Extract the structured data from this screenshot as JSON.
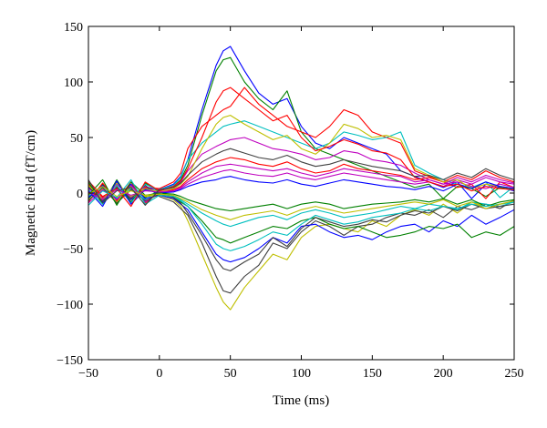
{
  "chart_data": {
    "type": "line",
    "title": "",
    "xlabel": "Time (ms)",
    "ylabel": "Magnetic field (fT/cm)",
    "xlim": [
      -50,
      250
    ],
    "ylim": [
      -150,
      150
    ],
    "xticks": [
      -50,
      0,
      50,
      100,
      150,
      200,
      250
    ],
    "xtick_labels": [
      "−50",
      "0",
      "50",
      "100",
      "150",
      "200",
      "250"
    ],
    "yticks": [
      -150,
      -100,
      -50,
      0,
      50,
      100,
      150
    ],
    "ytick_labels": [
      "−150",
      "−100",
      "−50",
      "0",
      "50",
      "100",
      "150"
    ],
    "grid": false,
    "legend": "none",
    "colors": [
      "#0000ff",
      "#008000",
      "#ff0000",
      "#00bfbf",
      "#bf00bf",
      "#bfbf00",
      "#404040"
    ],
    "x": [
      -50,
      -40,
      -30,
      -20,
      -10,
      0,
      10,
      15,
      20,
      30,
      40,
      45,
      50,
      60,
      70,
      80,
      90,
      100,
      110,
      120,
      130,
      140,
      150,
      160,
      170,
      180,
      190,
      200,
      210,
      220,
      230,
      240,
      250
    ],
    "series": [
      {
        "values": [
          5,
          -8,
          10,
          -6,
          4,
          3,
          8,
          15,
          30,
          75,
          115,
          128,
          132,
          110,
          90,
          80,
          85,
          60,
          45,
          40,
          50,
          45,
          40,
          35,
          20,
          15,
          10,
          5,
          10,
          -5,
          8,
          5,
          2
        ]
      },
      {
        "values": [
          -5,
          8,
          -10,
          6,
          -4,
          2,
          6,
          12,
          25,
          70,
          110,
          120,
          122,
          100,
          85,
          75,
          92,
          55,
          40,
          35,
          30,
          25,
          20,
          15,
          10,
          5,
          8,
          -5,
          6,
          4,
          -3,
          5,
          3
        ]
      },
      {
        "values": [
          8,
          -4,
          6,
          -8,
          5,
          4,
          10,
          18,
          40,
          60,
          70,
          75,
          78,
          95,
          80,
          70,
          60,
          55,
          50,
          60,
          75,
          70,
          55,
          50,
          45,
          20,
          15,
          10,
          5,
          8,
          -5,
          10,
          5
        ]
      },
      {
        "values": [
          -3,
          6,
          -5,
          4,
          -6,
          3,
          7,
          14,
          30,
          45,
          55,
          60,
          62,
          65,
          60,
          55,
          50,
          45,
          40,
          45,
          55,
          52,
          48,
          50,
          55,
          25,
          18,
          12,
          8,
          5,
          10,
          -4,
          6
        ]
      },
      {
        "values": [
          4,
          -5,
          8,
          -4,
          6,
          2,
          5,
          10,
          20,
          35,
          42,
          45,
          48,
          50,
          45,
          40,
          38,
          35,
          30,
          32,
          38,
          36,
          30,
          28,
          25,
          18,
          12,
          8,
          10,
          6,
          4,
          8,
          5
        ]
      },
      {
        "values": [
          -6,
          4,
          -8,
          6,
          -3,
          -2,
          -6,
          -12,
          -25,
          -55,
          -85,
          -98,
          -105,
          -85,
          -70,
          -55,
          -60,
          -40,
          -30,
          -28,
          -32,
          -35,
          -25,
          -30,
          -20,
          -15,
          -20,
          -10,
          -18,
          -8,
          -12,
          -10,
          -8
        ]
      },
      {
        "values": [
          6,
          -7,
          5,
          -5,
          7,
          -3,
          -8,
          -14,
          -20,
          -45,
          -75,
          -88,
          -90,
          -75,
          -65,
          -45,
          -50,
          -35,
          -25,
          -30,
          -38,
          -30,
          -28,
          -22,
          -18,
          -20,
          -15,
          -22,
          -12,
          -15,
          -10,
          -14,
          -6
        ]
      },
      {
        "values": [
          -4,
          7,
          -6,
          8,
          -5,
          -2,
          -5,
          -10,
          -15,
          -35,
          -55,
          -60,
          -62,
          -58,
          -50,
          -40,
          -45,
          -30,
          -28,
          -35,
          -40,
          -38,
          -42,
          -35,
          -30,
          -28,
          -35,
          -25,
          -30,
          -20,
          -28,
          -22,
          -15
        ]
      },
      {
        "values": [
          10,
          -10,
          12,
          -8,
          9,
          1,
          -4,
          -8,
          -12,
          -25,
          -40,
          -42,
          -45,
          -40,
          -35,
          -30,
          -32,
          -25,
          -22,
          -28,
          -32,
          -30,
          -35,
          -40,
          -38,
          -35,
          -30,
          -32,
          -28,
          -40,
          -35,
          -38,
          -30
        ]
      },
      {
        "values": [
          -8,
          9,
          -7,
          10,
          -9,
          1,
          3,
          6,
          12,
          22,
          28,
          30,
          32,
          30,
          26,
          24,
          28,
          22,
          18,
          20,
          26,
          22,
          20,
          18,
          16,
          12,
          14,
          10,
          16,
          12,
          20,
          14,
          10
        ]
      },
      {
        "values": [
          3,
          -10,
          7,
          -9,
          8,
          2,
          -3,
          -6,
          -10,
          -18,
          -25,
          -28,
          -30,
          -26,
          -22,
          -20,
          -24,
          -18,
          -15,
          -18,
          -22,
          -20,
          -18,
          -15,
          -12,
          -14,
          -10,
          -12,
          -15,
          -8,
          -10,
          -12,
          -8
        ]
      },
      {
        "values": [
          -9,
          3,
          -6,
          7,
          -8,
          0,
          2,
          4,
          8,
          14,
          18,
          20,
          21,
          18,
          16,
          15,
          18,
          14,
          12,
          15,
          18,
          16,
          14,
          12,
          10,
          8,
          10,
          6,
          12,
          8,
          14,
          10,
          8
        ]
      },
      {
        "values": [
          7,
          -6,
          9,
          -3,
          4,
          1,
          4,
          8,
          15,
          40,
          62,
          68,
          70,
          62,
          55,
          48,
          52,
          40,
          35,
          45,
          62,
          58,
          50,
          52,
          48,
          22,
          16,
          10,
          12,
          4,
          8,
          6,
          4
        ]
      },
      {
        "values": [
          -7,
          5,
          -9,
          3,
          -7,
          -1,
          -4,
          -9,
          -18,
          -38,
          -60,
          -68,
          -70,
          -62,
          -55,
          -40,
          -48,
          -32,
          -22,
          -26,
          -30,
          -28,
          -24,
          -26,
          -20,
          -16,
          -18,
          -12,
          -16,
          -10,
          -14,
          -12,
          -10
        ]
      },
      {
        "values": [
          2,
          -12,
          11,
          -10,
          3,
          0,
          1,
          3,
          6,
          10,
          12,
          14,
          15,
          12,
          10,
          9,
          12,
          8,
          6,
          9,
          12,
          10,
          8,
          6,
          5,
          3,
          6,
          2,
          8,
          4,
          10,
          6,
          4
        ]
      },
      {
        "values": [
          -2,
          12,
          -11,
          10,
          -2,
          0,
          -1,
          -3,
          -6,
          -10,
          -14,
          -15,
          -16,
          -14,
          -12,
          -10,
          -14,
          -10,
          -8,
          -10,
          -14,
          -12,
          -10,
          -9,
          -8,
          -6,
          -8,
          -5,
          -10,
          -6,
          -12,
          -8,
          -6
        ]
      },
      {
        "values": [
          11,
          -3,
          4,
          -12,
          10,
          2,
          6,
          11,
          22,
          50,
          82,
          92,
          95,
          85,
          75,
          65,
          70,
          50,
          38,
          42,
          48,
          44,
          38,
          36,
          30,
          14,
          10,
          6,
          8,
          2,
          6,
          4,
          3
        ]
      },
      {
        "values": [
          -11,
          2,
          -4,
          12,
          -10,
          -2,
          -3,
          -7,
          -12,
          -28,
          -46,
          -50,
          -52,
          -48,
          -42,
          -35,
          -38,
          -28,
          -20,
          -24,
          -28,
          -26,
          -22,
          -20,
          -18,
          -14,
          -16,
          -12,
          -14,
          -10,
          -12,
          -10,
          -8
        ]
      },
      {
        "values": [
          1,
          -6,
          3,
          -2,
          2,
          1,
          2,
          5,
          10,
          18,
          24,
          25,
          26,
          24,
          22,
          20,
          22,
          18,
          15,
          18,
          22,
          20,
          18,
          16,
          15,
          10,
          12,
          8,
          14,
          10,
          16,
          12,
          9
        ]
      },
      {
        "values": [
          -1,
          6,
          -3,
          2,
          -2,
          -1,
          -2,
          -5,
          -8,
          -15,
          -20,
          -22,
          -24,
          -20,
          -18,
          -16,
          -20,
          -15,
          -12,
          -15,
          -18,
          -16,
          -14,
          -12,
          -10,
          -8,
          -10,
          -6,
          -12,
          -8,
          -14,
          -10,
          -7
        ]
      },
      {
        "values": [
          12,
          -9,
          2,
          5,
          -11,
          3,
          5,
          9,
          16,
          28,
          35,
          38,
          40,
          36,
          32,
          30,
          34,
          28,
          24,
          26,
          30,
          27,
          24,
          22,
          20,
          15,
          16,
          12,
          18,
          14,
          22,
          16,
          12
        ]
      }
    ]
  }
}
